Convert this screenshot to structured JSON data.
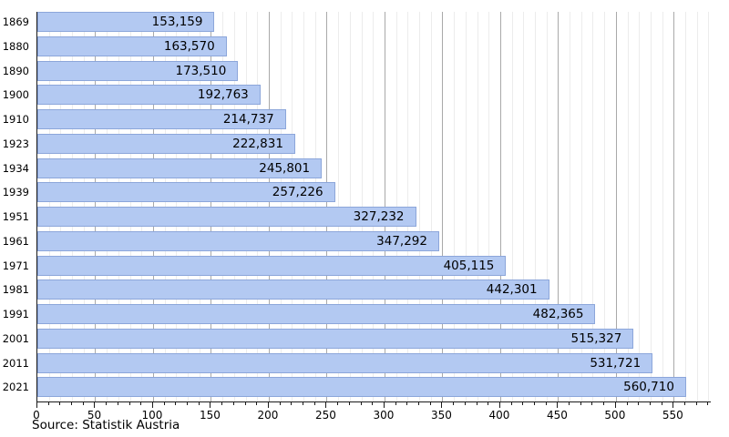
{
  "source_note": "Source: Statistik Austria",
  "colors": {
    "background": "#ffffff",
    "bar_fill": "#b3c9f2",
    "bar_border": "#8ca6da",
    "grid_minor": "#ececec",
    "grid_major": "#a9a9a9",
    "axis": "#1a1a1a",
    "text": "#000000"
  },
  "chart_data": {
    "type": "bar",
    "orientation": "horizontal",
    "title": "",
    "xlabel": "",
    "ylabel": "",
    "categories": [
      "1869",
      "1880",
      "1890",
      "1900",
      "1910",
      "1923",
      "1934",
      "1939",
      "1951",
      "1961",
      "1971",
      "1981",
      "1991",
      "2001",
      "2011",
      "2021"
    ],
    "values": [
      153159,
      163570,
      173510,
      192763,
      214737,
      222831,
      245801,
      257226,
      327232,
      347292,
      405115,
      442301,
      482365,
      515327,
      531721,
      560710
    ],
    "value_labels": [
      "153,159",
      "163,570",
      "173,510",
      "192,763",
      "214,737",
      "222,831",
      "245,801",
      "257,226",
      "327,232",
      "347,292",
      "405,115",
      "442,301",
      "482,365",
      "515,327",
      "531,721",
      "560,710"
    ],
    "x_tick_labels": [
      "0",
      "50",
      "100",
      "150",
      "200",
      "250",
      "300",
      "350",
      "400",
      "450",
      "500",
      "550"
    ],
    "x_major_step_thousands": 50,
    "x_minor_step_thousands": 10,
    "xlim_thousands": [
      0,
      582
    ],
    "grid": "vertical, minor every 10k (light), major every 50k (gray)",
    "legend": "none",
    "value_labels_position": "inside bar, right-aligned"
  }
}
